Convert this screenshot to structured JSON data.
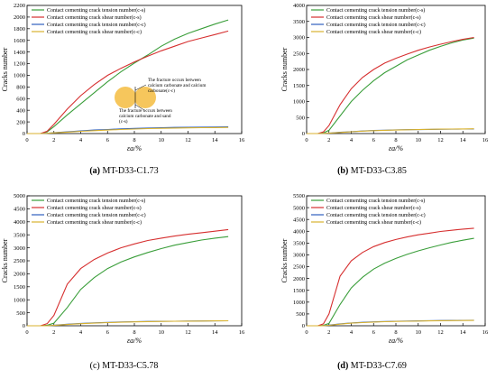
{
  "legend_labels": [
    "Contact cementing crack tension number(c-s)",
    "Contact cementing crack shear number(c-s)",
    "Contact cementing crack tension number(c-c)",
    "Contact cementing crack shear number(c-c)"
  ],
  "series_colors": [
    "#3a9e3a",
    "#d62f2f",
    "#2e5fbf",
    "#d9b22e"
  ],
  "annotation_cc": "The fracture occurs between calcium carbonate and calcium carbonate(c-c)",
  "annotation_cs": "The fracture occurs between calcium carbonate and sand (c-s)",
  "chart_data": [
    {
      "type": "line",
      "letter": "(a)",
      "caption": "MT-D33-C1.73",
      "xlabel": "εa/%",
      "ylabel": "Cracks number",
      "xlim": [
        0,
        16
      ],
      "ylim": [
        0,
        2200
      ],
      "xticks": [
        0,
        2,
        4,
        6,
        8,
        10,
        12,
        14,
        16
      ],
      "yticks": [
        0,
        200,
        400,
        600,
        800,
        1000,
        1200,
        1400,
        1600,
        1800,
        2000,
        2200
      ],
      "x": [
        0,
        1,
        1.5,
        2,
        3,
        4,
        5,
        6,
        7,
        8,
        9,
        10,
        11,
        12,
        13,
        14,
        15
      ],
      "series": [
        {
          "name": "Contact cementing crack tension number(c-s)",
          "values": [
            0,
            0,
            30,
            120,
            320,
            510,
            700,
            890,
            1060,
            1210,
            1350,
            1500,
            1620,
            1720,
            1800,
            1880,
            1950
          ]
        },
        {
          "name": "Contact cementing crack shear number(c-s)",
          "values": [
            0,
            0,
            40,
            160,
            420,
            650,
            840,
            1000,
            1120,
            1230,
            1330,
            1420,
            1500,
            1580,
            1640,
            1700,
            1760
          ]
        },
        {
          "name": "Contact cementing crack tension number(c-c)",
          "values": [
            0,
            0,
            5,
            15,
            30,
            45,
            60,
            70,
            80,
            88,
            95,
            100,
            105,
            108,
            110,
            112,
            115
          ]
        },
        {
          "name": "Contact cementing crack shear number(c-c)",
          "values": [
            0,
            0,
            5,
            12,
            25,
            38,
            50,
            60,
            70,
            78,
            85,
            90,
            95,
            98,
            100,
            102,
            105
          ]
        }
      ]
    },
    {
      "type": "line",
      "letter": "(b)",
      "caption": "MT-D33-C3.85",
      "xlabel": "εa/%",
      "ylabel": "Cracks number",
      "xlim": [
        0,
        16
      ],
      "ylim": [
        0,
        4000
      ],
      "xticks": [
        0,
        2,
        4,
        6,
        8,
        10,
        12,
        14,
        16
      ],
      "yticks": [
        0,
        500,
        1000,
        1500,
        2000,
        2500,
        3000,
        3500,
        4000
      ],
      "x": [
        0,
        1,
        1.5,
        2,
        3,
        4,
        5,
        6,
        7,
        8,
        9,
        10,
        11,
        12,
        13,
        14,
        15
      ],
      "series": [
        {
          "name": "Contact cementing crack tension number(c-s)",
          "values": [
            0,
            0,
            20,
            100,
            550,
            1000,
            1350,
            1650,
            1900,
            2100,
            2300,
            2450,
            2600,
            2720,
            2830,
            2920,
            2980
          ]
        },
        {
          "name": "Contact cementing crack shear number(c-s)",
          "values": [
            0,
            0,
            50,
            250,
            900,
            1400,
            1750,
            2000,
            2200,
            2350,
            2480,
            2600,
            2700,
            2790,
            2870,
            2940,
            3000
          ]
        },
        {
          "name": "Contact cementing crack tension number(c-c)",
          "values": [
            0,
            0,
            5,
            15,
            40,
            60,
            80,
            95,
            105,
            115,
            120,
            125,
            130,
            135,
            138,
            140,
            142
          ]
        },
        {
          "name": "Contact cementing crack shear number(c-c)",
          "values": [
            0,
            0,
            5,
            12,
            35,
            55,
            75,
            90,
            100,
            110,
            118,
            125,
            132,
            138,
            142,
            145,
            148
          ]
        }
      ]
    },
    {
      "type": "line",
      "letter": "(c)",
      "caption": "MT-D33-C5.78",
      "xlabel": "εa/%",
      "ylabel": "Cracks number",
      "xlim": [
        0,
        16
      ],
      "ylim": [
        0,
        5000
      ],
      "xticks": [
        0,
        2,
        4,
        6,
        8,
        10,
        12,
        14,
        16
      ],
      "yticks": [
        0,
        500,
        1000,
        1500,
        2000,
        2500,
        3000,
        3500,
        4000,
        4500,
        5000
      ],
      "x": [
        0,
        1,
        1.5,
        2,
        3,
        4,
        5,
        6,
        7,
        8,
        9,
        10,
        11,
        12,
        13,
        14,
        15
      ],
      "series": [
        {
          "name": "Contact cementing crack tension number(c-s)",
          "values": [
            0,
            0,
            20,
            100,
            700,
            1400,
            1850,
            2200,
            2450,
            2650,
            2820,
            2970,
            3100,
            3200,
            3300,
            3370,
            3430
          ]
        },
        {
          "name": "Contact cementing crack shear number(c-s)",
          "values": [
            0,
            0,
            80,
            400,
            1600,
            2200,
            2550,
            2800,
            3000,
            3150,
            3280,
            3370,
            3450,
            3520,
            3580,
            3640,
            3700
          ]
        },
        {
          "name": "Contact cementing crack tension number(c-c)",
          "values": [
            0,
            0,
            5,
            20,
            60,
            90,
            110,
            130,
            145,
            155,
            165,
            170,
            175,
            180,
            185,
            188,
            190
          ]
        },
        {
          "name": "Contact cementing crack shear number(c-c)",
          "values": [
            0,
            0,
            5,
            15,
            50,
            80,
            100,
            120,
            135,
            148,
            158,
            165,
            172,
            178,
            182,
            186,
            190
          ]
        }
      ]
    },
    {
      "type": "line",
      "letter": "(d)",
      "caption": "MT-D33-C7.69",
      "xlabel": "εa/%",
      "ylabel": "Cracks number",
      "xlim": [
        0,
        16
      ],
      "ylim": [
        0,
        5500
      ],
      "xticks": [
        0,
        2,
        4,
        6,
        8,
        10,
        12,
        14,
        16
      ],
      "yticks": [
        0,
        500,
        1000,
        1500,
        2000,
        2500,
        3000,
        3500,
        4000,
        4500,
        5000,
        5500
      ],
      "x": [
        0,
        1,
        1.5,
        2,
        3,
        4,
        5,
        6,
        7,
        8,
        9,
        10,
        11,
        12,
        13,
        14,
        15
      ],
      "series": [
        {
          "name": "Contact cementing crack tension number(c-s)",
          "values": [
            0,
            0,
            20,
            100,
            900,
            1600,
            2050,
            2400,
            2650,
            2850,
            3020,
            3170,
            3300,
            3420,
            3530,
            3620,
            3700
          ]
        },
        {
          "name": "Contact cementing crack shear number(c-s)",
          "values": [
            0,
            0,
            80,
            500,
            2100,
            2750,
            3100,
            3350,
            3520,
            3650,
            3760,
            3850,
            3920,
            3990,
            4040,
            4090,
            4130
          ]
        },
        {
          "name": "Contact cementing crack tension number(c-c)",
          "values": [
            0,
            0,
            5,
            25,
            80,
            120,
            145,
            165,
            180,
            192,
            200,
            208,
            214,
            220,
            225,
            228,
            232
          ]
        },
        {
          "name": "Contact cementing crack shear number(c-c)",
          "values": [
            0,
            0,
            5,
            20,
            70,
            110,
            135,
            155,
            170,
            182,
            192,
            200,
            207,
            212,
            217,
            221,
            225
          ]
        }
      ]
    }
  ]
}
